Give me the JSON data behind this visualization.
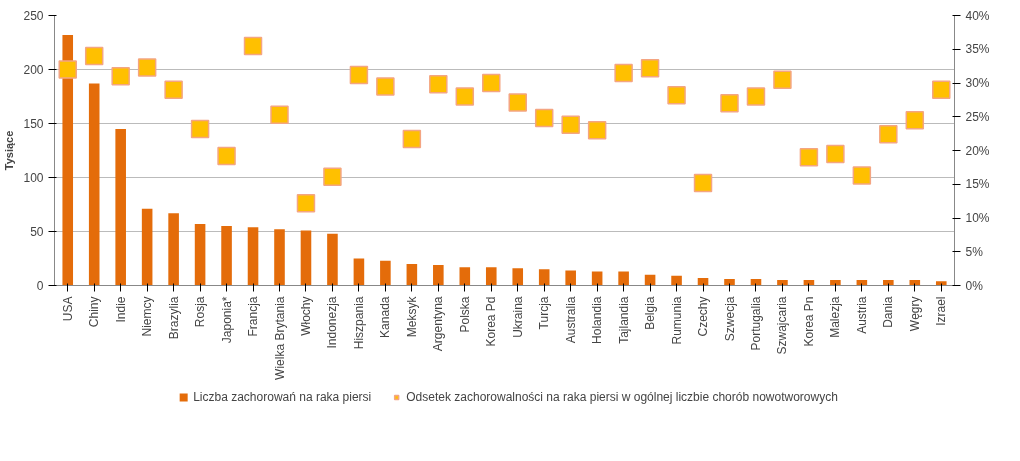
{
  "chart_data": {
    "type": "bar",
    "ylabel": "Tysiące",
    "categories": [
      "USA",
      "Chiny",
      "Indie",
      "Niemcy",
      "Brazylia",
      "Rosja",
      "Japonia*",
      "Francja",
      "Wielka Brytania",
      "Włochy",
      "Indonezja",
      "Hiszpania",
      "Kanada",
      "Meksyk",
      "Argentyna",
      "Polska",
      "Korea Pd",
      "Ukraina",
      "Turcja",
      "Australia",
      "Holandia",
      "Tajlandia",
      "Belgia",
      "Rumunia",
      "Czechy",
      "Szwecja",
      "Portugalia",
      "Szwajcaria",
      "Korea Pn",
      "Malezja",
      "Austria",
      "Dania",
      "Węgry",
      "Izrael"
    ],
    "series": [
      {
        "name": "Liczba zachorowań na raka piersi",
        "color": "#e46c0a",
        "values": [
          232,
          187,
          145,
          71,
          67,
          57,
          55,
          54,
          52,
          51,
          48,
          25,
          23,
          20,
          19,
          17,
          17,
          16,
          15,
          14,
          13,
          13,
          10,
          9,
          7,
          6,
          6,
          5,
          5,
          5,
          5,
          5,
          5,
          4
        ]
      },
      {
        "name": "Odsetek zachorowalności na raka piersi w ogólnej liczbie chorób nowotworowych",
        "type": "scatter",
        "axis": "y2",
        "marker": "square",
        "color": "#ffc000",
        "values": [
          32,
          34,
          31,
          32.3,
          29,
          23.2,
          19.2,
          35.5,
          25.3,
          12.2,
          16.1,
          31.2,
          29.5,
          21.7,
          29.8,
          28,
          30,
          27.1,
          24.8,
          23.8,
          23,
          31.5,
          32.2,
          28.2,
          15.2,
          27,
          28,
          30.5,
          19,
          19.5,
          16.3,
          22.4,
          24.5,
          29
        ]
      }
    ],
    "ylim": [
      0,
      250
    ],
    "yticks": [
      0,
      50,
      100,
      150,
      200,
      250
    ],
    "y2lim": [
      0,
      40
    ],
    "y2ticks": [
      {
        "value": 0,
        "label": "0%"
      },
      {
        "value": 5,
        "label": "5%"
      },
      {
        "value": 10,
        "label": "10%"
      },
      {
        "value": 15,
        "label": "15%"
      },
      {
        "value": 20,
        "label": "20%"
      },
      {
        "value": 25,
        "label": "25%"
      },
      {
        "value": 30,
        "label": "30%"
      },
      {
        "value": 35,
        "label": "35%"
      },
      {
        "value": 40,
        "label": "40%"
      }
    ],
    "grid": "y",
    "legend": "bottom"
  }
}
